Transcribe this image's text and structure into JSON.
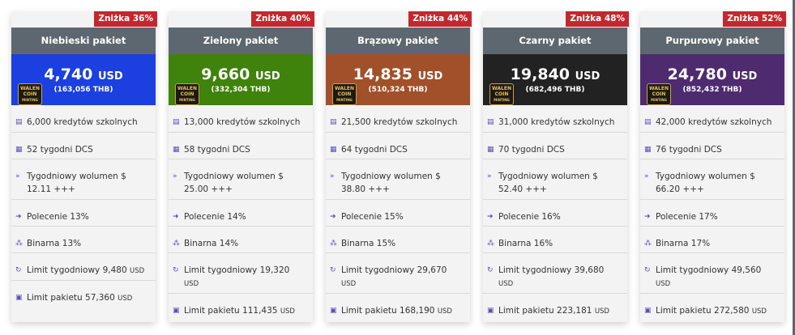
{
  "packages": [
    {
      "name": "Niebieski pakiet",
      "discount": "Zniżka 36%",
      "color": "#1c3fe0",
      "price": "4,740",
      "currency": "USD",
      "price_thb": "(163,056",
      "thb_unit": "THB)",
      "credits": "6,000 kredytów szkolnych",
      "weeks": "52 tygodni DCS",
      "volume_label": "Tygodniowy wolumen $",
      "volume_value": "12.11 +++",
      "referral": "Polecenie 13%",
      "binary": "Binarna 13%",
      "weekly_limit": "Limit tygodniowy 9,480",
      "weekly_limit_unit": "USD",
      "package_limit": "Limit pakietu 57,360",
      "package_limit_unit": "USD"
    },
    {
      "name": "Zielony pakiet",
      "discount": "Zniżka 40%",
      "color": "#3f820c",
      "price": "9,660",
      "currency": "USD",
      "price_thb": "(332,304",
      "thb_unit": "THB)",
      "credits": "13,000 kredytów szkolnych",
      "weeks": "58 tygodni DCS",
      "volume_label": "Tygodniowy wolumen $",
      "volume_value": "25.00 +++",
      "referral": "Polecenie 14%",
      "binary": "Binarna 14%",
      "weekly_limit": "Limit tygodniowy 19,320",
      "weekly_limit_unit": "USD",
      "package_limit": "Limit pakietu 111,435",
      "package_limit_unit": "USD"
    },
    {
      "name": "Brązowy pakiet",
      "discount": "Zniżka 44%",
      "color": "#a1502a",
      "price": "14,835",
      "currency": "USD",
      "price_thb": "(510,324",
      "thb_unit": "THB)",
      "credits": "21,500 kredytów szkolnych",
      "weeks": "64 tygodni DCS",
      "volume_label": "Tygodniowy wolumen $",
      "volume_value": "38.80 +++",
      "referral": "Polecenie 15%",
      "binary": "Binarna 15%",
      "weekly_limit": "Limit tygodniowy 29,670",
      "weekly_limit_unit": "USD",
      "package_limit": "Limit pakietu 168,190",
      "package_limit_unit": "USD"
    },
    {
      "name": "Czarny pakiet",
      "discount": "Zniżka 48%",
      "color": "#222222",
      "price": "19,840",
      "currency": "USD",
      "price_thb": "(682,496",
      "thb_unit": "THB)",
      "credits": "31,000 kredytów szkolnych",
      "weeks": "70 tygodni DCS",
      "volume_label": "Tygodniowy wolumen $",
      "volume_value": "52.40 +++",
      "referral": "Polecenie 16%",
      "binary": "Binarna 16%",
      "weekly_limit": "Limit tygodniowy 39,680",
      "weekly_limit_unit": "USD",
      "package_limit": "Limit pakietu 223,181",
      "package_limit_unit": "USD"
    },
    {
      "name": "Purpurowy pakiet",
      "discount": "Zniżka 52%",
      "color": "#4e2a6e",
      "price": "24,780",
      "currency": "USD",
      "price_thb": "(852,432",
      "thb_unit": "THB)",
      "credits": "42,000 kredytów szkolnych",
      "weeks": "76 tygodni DCS",
      "volume_label": "Tygodniowy wolumen $",
      "volume_value": "66.20 +++",
      "referral": "Polecenie 17%",
      "binary": "Binarna 17%",
      "weekly_limit": "Limit tygodniowy 49,560",
      "weekly_limit_unit": "USD",
      "package_limit": "Limit pakietu 272,580",
      "package_limit_unit": "USD"
    }
  ],
  "logo": {
    "line1": "WALEN",
    "line2": "COIN",
    "line3": "MINTING"
  },
  "icons": {
    "credits": "coins-icon",
    "weeks": "calendar-icon",
    "volume": "double-chevron-icon",
    "referral": "arrow-circle-icon",
    "binary": "sitemap-icon",
    "weekly_limit": "refresh-icon",
    "package_limit": "money-icon"
  },
  "colors": {
    "header": "#5d6770",
    "discount": "#c4272e",
    "icon": "#5b4fb8",
    "card_bg": "#f3f3f3"
  }
}
